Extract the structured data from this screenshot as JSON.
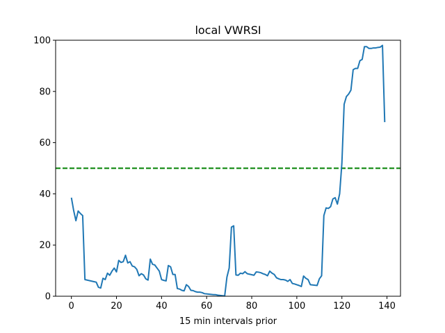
{
  "chart_data": {
    "type": "line",
    "title": "local VWRSI",
    "xlabel": "15 min intervals prior",
    "ylabel": "",
    "xlim": [
      -7,
      146
    ],
    "ylim": [
      0,
      100
    ],
    "xticks": [
      0,
      20,
      40,
      60,
      80,
      100,
      120,
      140
    ],
    "yticks": [
      0,
      20,
      40,
      60,
      80,
      100
    ],
    "grid": false,
    "legend": "none",
    "threshold": {
      "y": 50,
      "color": "#008000",
      "style": "dashed"
    },
    "series": [
      {
        "color": "#1f77b4",
        "x": [
          0,
          1,
          2,
          3,
          4,
          5,
          6,
          7,
          8,
          9,
          10,
          11,
          12,
          13,
          14,
          15,
          16,
          17,
          18,
          19,
          20,
          21,
          22,
          23,
          24,
          25,
          26,
          27,
          28,
          29,
          30,
          31,
          32,
          33,
          34,
          35,
          36,
          37,
          38,
          39,
          40,
          41,
          42,
          43,
          44,
          45,
          46,
          47,
          48,
          49,
          50,
          51,
          52,
          53,
          54,
          55,
          56,
          57,
          58,
          59,
          60,
          61,
          62,
          63,
          64,
          65,
          66,
          67,
          68,
          69,
          70,
          71,
          72,
          73,
          74,
          75,
          76,
          77,
          78,
          79,
          80,
          81,
          82,
          83,
          84,
          85,
          86,
          87,
          88,
          89,
          90,
          91,
          92,
          93,
          94,
          95,
          96,
          97,
          98,
          99,
          100,
          101,
          102,
          103,
          104,
          105,
          106,
          107,
          108,
          109,
          110,
          111,
          112,
          113,
          114,
          115,
          116,
          117,
          118,
          119,
          120,
          121,
          122,
          123,
          124,
          125,
          126,
          127,
          128,
          129,
          130,
          131,
          132,
          133,
          134,
          135,
          136,
          137,
          138,
          139
        ],
        "y": [
          38.5,
          33.5,
          29.5,
          33.3,
          32.3,
          31.5,
          6.5,
          6.3,
          6.1,
          5.9,
          5.7,
          5.5,
          3.5,
          3.2,
          7.0,
          6.5,
          9.0,
          8.2,
          9.8,
          11.0,
          9.5,
          14.0,
          13.2,
          13.5,
          16.0,
          13.0,
          13.5,
          11.8,
          11.5,
          10.5,
          8.0,
          8.8,
          8.3,
          6.8,
          6.3,
          14.5,
          12.5,
          12.2,
          11.0,
          9.8,
          6.5,
          6.2,
          6.0,
          12.0,
          11.5,
          8.5,
          8.5,
          3.0,
          2.8,
          2.3,
          2.1,
          4.5,
          3.8,
          2.3,
          2.2,
          1.8,
          1.6,
          1.6,
          1.4,
          1.0,
          0.9,
          0.8,
          0.7,
          0.6,
          0.6,
          0.4,
          0.3,
          0.2,
          0.1,
          7.5,
          11.0,
          27.0,
          27.5,
          8.3,
          8.2,
          9.0,
          8.8,
          9.6,
          8.8,
          8.6,
          8.4,
          8.2,
          9.5,
          9.4,
          9.2,
          8.8,
          8.5,
          8.0,
          9.8,
          9.0,
          8.5,
          7.2,
          6.8,
          6.5,
          6.5,
          6.3,
          5.8,
          6.5,
          5.0,
          4.8,
          4.5,
          4.2,
          3.8,
          7.9,
          7.0,
          6.5,
          4.5,
          4.4,
          4.3,
          4.2,
          6.8,
          8.0,
          31.5,
          34.5,
          34.3,
          35.0,
          38.0,
          38.5,
          36.0,
          40.0,
          52.0,
          75.0,
          78.0,
          79.0,
          80.5,
          88.5,
          89.0,
          89.0,
          92.0,
          92.5,
          97.5,
          97.5,
          96.8,
          96.8,
          97.0,
          97.0,
          97.2,
          97.3,
          98.0,
          68.0
        ]
      }
    ]
  }
}
